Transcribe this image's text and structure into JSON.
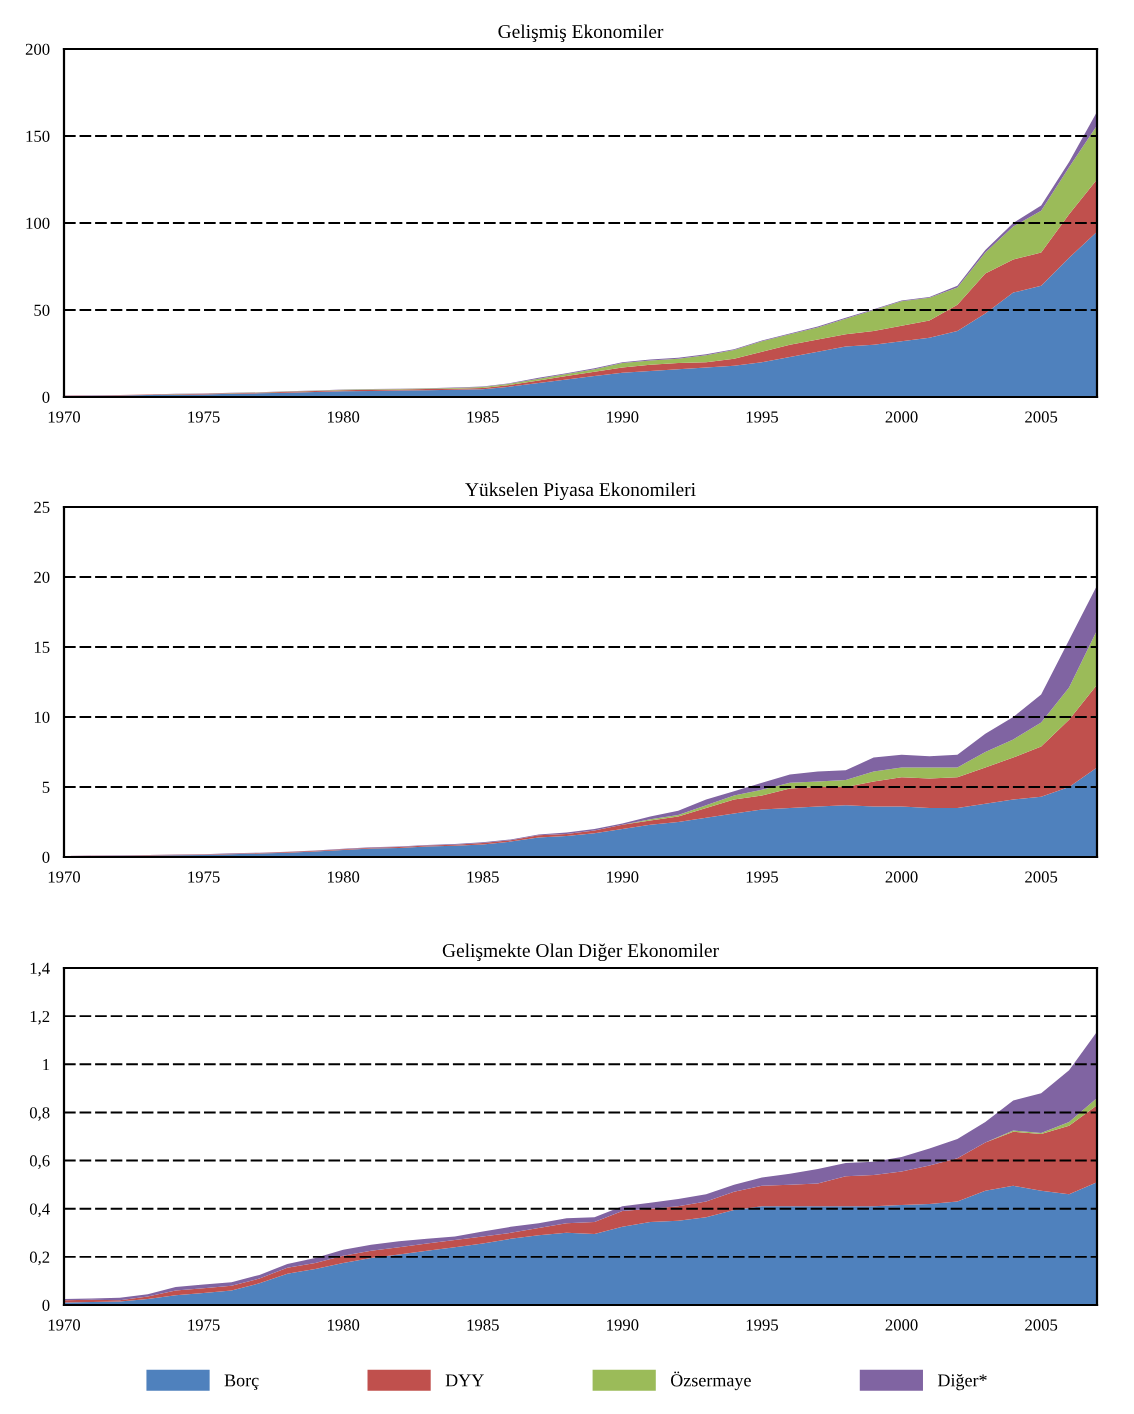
{
  "chart_data": [
    {
      "type": "area",
      "stacked": true,
      "title": "Gelişmiş Ekonomiler",
      "grid": "y",
      "legend": false,
      "x": [
        1970,
        1971,
        1972,
        1973,
        1974,
        1975,
        1976,
        1977,
        1978,
        1979,
        1980,
        1981,
        1982,
        1983,
        1984,
        1985,
        1986,
        1987,
        1988,
        1989,
        1990,
        1991,
        1992,
        1993,
        1994,
        1995,
        1996,
        1997,
        1998,
        1999,
        2000,
        2001,
        2002,
        2003,
        2004,
        2005,
        2006,
        2007
      ],
      "xlim": [
        1970,
        2007
      ],
      "xticks": [
        1970,
        1975,
        1980,
        1985,
        1990,
        1995,
        2000,
        2005
      ],
      "ylim": [
        0,
        200
      ],
      "yticks": [
        0,
        50,
        100,
        150,
        200
      ],
      "series": [
        {
          "color": "#4f81bd",
          "values": [
            0.5,
            0.7,
            0.9,
            1.1,
            1.3,
            1.5,
            1.8,
            2.1,
            2.5,
            2.9,
            3.3,
            3.5,
            3.7,
            3.9,
            4.1,
            4.4,
            6,
            8,
            10,
            12,
            14,
            15,
            16,
            17,
            18,
            20,
            23,
            26,
            29,
            30,
            32,
            34,
            38,
            48,
            60,
            64,
            80,
            95
          ]
        },
        {
          "color": "#c0504d",
          "values": [
            0.2,
            0.2,
            0.2,
            0.3,
            0.3,
            0.3,
            0.4,
            0.4,
            0.5,
            0.5,
            0.6,
            0.6,
            0.6,
            0.7,
            0.7,
            0.8,
            1,
            1.5,
            2,
            2.5,
            3,
            3.5,
            3.5,
            3,
            4,
            6,
            7,
            7,
            7,
            8,
            9,
            10,
            15,
            23,
            19,
            19,
            25,
            30
          ]
        },
        {
          "color": "#9bbb59",
          "values": [
            0,
            0,
            0,
            0,
            0.1,
            0.1,
            0.1,
            0.1,
            0.2,
            0.2,
            0.2,
            0.3,
            0.3,
            0.3,
            0.4,
            0.5,
            0.7,
            1,
            1.2,
            1.5,
            2.5,
            2.5,
            2.5,
            4,
            5,
            6,
            6,
            7,
            9,
            12,
            14,
            13,
            10,
            12,
            19,
            24,
            27,
            31
          ]
        },
        {
          "color": "#8064a2",
          "values": [
            0.1,
            0.1,
            0.1,
            0.1,
            0.1,
            0.1,
            0.1,
            0.1,
            0.1,
            0.1,
            0.2,
            0.2,
            0.2,
            0.2,
            0.2,
            0.3,
            0.3,
            0.5,
            0.5,
            0.5,
            0.5,
            0.5,
            0.5,
            0.5,
            0.5,
            0.5,
            0.5,
            0.5,
            0.5,
            0.5,
            0.5,
            0.5,
            1,
            1.5,
            2,
            3,
            3,
            8
          ]
        }
      ]
    },
    {
      "type": "area",
      "stacked": true,
      "title": "Yükselen Piyasa Ekonomileri",
      "grid": "y",
      "legend": false,
      "x": [
        1970,
        1971,
        1972,
        1973,
        1974,
        1975,
        1976,
        1977,
        1978,
        1979,
        1980,
        1981,
        1982,
        1983,
        1984,
        1985,
        1986,
        1987,
        1988,
        1989,
        1990,
        1991,
        1992,
        1993,
        1994,
        1995,
        1996,
        1997,
        1998,
        1999,
        2000,
        2001,
        2002,
        2003,
        2004,
        2005,
        2006,
        2007
      ],
      "xlim": [
        1970,
        2007
      ],
      "xticks": [
        1970,
        1975,
        1980,
        1985,
        1990,
        1995,
        2000,
        2005
      ],
      "ylim": [
        0,
        25
      ],
      "yticks": [
        0,
        5,
        10,
        15,
        20,
        25
      ],
      "series": [
        {
          "color": "#4f81bd",
          "values": [
            0.05,
            0.07,
            0.09,
            0.11,
            0.13,
            0.15,
            0.2,
            0.25,
            0.3,
            0.4,
            0.5,
            0.6,
            0.65,
            0.75,
            0.8,
            0.9,
            1.1,
            1.4,
            1.5,
            1.7,
            2.0,
            2.3,
            2.5,
            2.8,
            3.1,
            3.4,
            3.5,
            3.6,
            3.7,
            3.6,
            3.6,
            3.5,
            3.5,
            3.8,
            4.1,
            4.3,
            5.0,
            6.4
          ]
        },
        {
          "color": "#c0504d",
          "values": [
            0.02,
            0.02,
            0.02,
            0.03,
            0.03,
            0.03,
            0.04,
            0.04,
            0.05,
            0.05,
            0.06,
            0.06,
            0.07,
            0.07,
            0.08,
            0.1,
            0.1,
            0.15,
            0.15,
            0.2,
            0.3,
            0.3,
            0.4,
            0.7,
            1.0,
            1.0,
            1.4,
            1.4,
            1.3,
            1.8,
            2.1,
            2.1,
            2.2,
            2.6,
            3.0,
            3.6,
            4.8,
            5.9
          ]
        },
        {
          "color": "#9bbb59",
          "values": [
            0,
            0,
            0,
            0,
            0,
            0,
            0,
            0,
            0,
            0,
            0,
            0,
            0,
            0,
            0,
            0,
            0,
            0,
            0,
            0,
            0,
            0.1,
            0.1,
            0.2,
            0.3,
            0.4,
            0.4,
            0.4,
            0.5,
            0.7,
            0.7,
            0.8,
            0.7,
            1.1,
            1.3,
            1.7,
            2.3,
            3.9
          ]
        },
        {
          "color": "#8064a2",
          "values": [
            0.01,
            0.01,
            0.01,
            0.01,
            0.01,
            0.01,
            0.02,
            0.02,
            0.02,
            0.02,
            0.03,
            0.03,
            0.03,
            0.03,
            0.04,
            0.05,
            0.05,
            0.05,
            0.1,
            0.1,
            0.1,
            0.2,
            0.3,
            0.4,
            0.3,
            0.5,
            0.6,
            0.7,
            0.7,
            1.0,
            0.9,
            0.8,
            0.9,
            1.3,
            1.6,
            2.0,
            3.4,
            3.2
          ]
        }
      ]
    },
    {
      "type": "area",
      "stacked": true,
      "title": "Gelişmekte Olan Diğer Ekonomiler",
      "grid": "y",
      "legend": "bottom",
      "x": [
        1970,
        1971,
        1972,
        1973,
        1974,
        1975,
        1976,
        1977,
        1978,
        1979,
        1980,
        1981,
        1982,
        1983,
        1984,
        1985,
        1986,
        1987,
        1988,
        1989,
        1990,
        1991,
        1992,
        1993,
        1994,
        1995,
        1996,
        1997,
        1998,
        1999,
        2000,
        2001,
        2002,
        2003,
        2004,
        2005,
        2006,
        2007
      ],
      "xlim": [
        1970,
        2007
      ],
      "xticks": [
        1970,
        1975,
        1980,
        1985,
        1990,
        1995,
        2000,
        2005
      ],
      "ylim": [
        0,
        1.4
      ],
      "yticks": [
        0,
        {
          "value": 0.2,
          "label": "0,2"
        },
        {
          "value": 0.4,
          "label": "0,4"
        },
        {
          "value": 0.6,
          "label": "0,6"
        },
        {
          "value": 0.8,
          "label": "0,8"
        },
        1,
        {
          "value": 1.2,
          "label": "1,2"
        },
        {
          "value": 1.4,
          "label": "1,4"
        }
      ],
      "series": [
        {
          "name": "Borç",
          "color": "#4f81bd",
          "values": [
            0.01,
            0.012,
            0.015,
            0.025,
            0.04,
            0.05,
            0.06,
            0.09,
            0.13,
            0.15,
            0.175,
            0.195,
            0.21,
            0.225,
            0.24,
            0.255,
            0.275,
            0.29,
            0.3,
            0.295,
            0.325,
            0.345,
            0.35,
            0.365,
            0.395,
            0.41,
            0.41,
            0.41,
            0.41,
            0.41,
            0.415,
            0.42,
            0.43,
            0.475,
            0.495,
            0.475,
            0.46,
            0.51
          ]
        },
        {
          "name": "DYY",
          "color": "#c0504d",
          "values": [
            0.01,
            0.01,
            0.005,
            0.01,
            0.02,
            0.02,
            0.02,
            0.02,
            0.025,
            0.025,
            0.03,
            0.03,
            0.03,
            0.03,
            0.03,
            0.03,
            0.025,
            0.03,
            0.04,
            0.05,
            0.065,
            0.055,
            0.06,
            0.065,
            0.075,
            0.085,
            0.09,
            0.095,
            0.125,
            0.13,
            0.14,
            0.16,
            0.18,
            0.2,
            0.225,
            0.235,
            0.285,
            0.32
          ]
        },
        {
          "name": "Özsermaye",
          "color": "#9bbb59",
          "values": [
            0,
            0,
            0,
            0,
            0,
            0,
            0,
            0,
            0,
            0,
            0,
            0,
            0,
            0,
            0,
            0,
            0,
            0,
            0,
            0,
            0,
            0,
            0,
            0,
            0,
            0,
            0,
            0,
            0,
            0,
            0,
            0,
            0,
            0,
            0.005,
            0.005,
            0.015,
            0.03
          ]
        },
        {
          "name": "Diğer*",
          "color": "#8064a2",
          "values": [
            0.005,
            0.005,
            0.01,
            0.01,
            0.015,
            0.015,
            0.015,
            0.015,
            0.015,
            0.02,
            0.025,
            0.025,
            0.025,
            0.02,
            0.015,
            0.02,
            0.025,
            0.02,
            0.02,
            0.02,
            0.02,
            0.025,
            0.03,
            0.03,
            0.03,
            0.035,
            0.045,
            0.06,
            0.055,
            0.055,
            0.06,
            0.07,
            0.08,
            0.085,
            0.125,
            0.165,
            0.215,
            0.275
          ]
        }
      ]
    }
  ]
}
